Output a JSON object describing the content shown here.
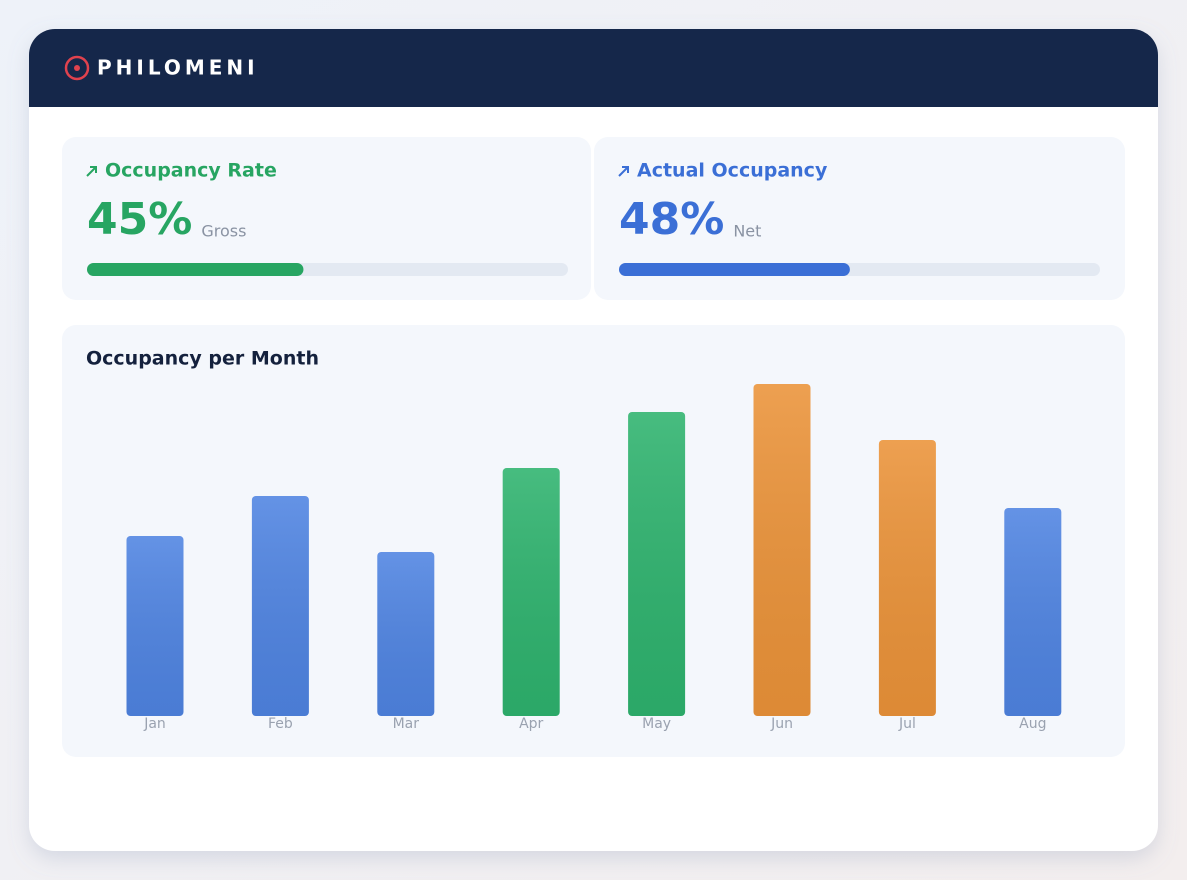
{
  "header": {
    "brand": "PHILOMENI"
  },
  "kpis": [
    {
      "title": "Occupancy Rate",
      "value": 45,
      "value_label": "45%",
      "note": "Gross",
      "color": "#27a562"
    },
    {
      "title": "Actual Occupancy",
      "value": 48,
      "value_label": "48%",
      "note": "Net",
      "color": "#3b6fd6"
    }
  ],
  "chart_data": {
    "type": "bar",
    "title": "Occupancy per Month",
    "categories": [
      "Jan",
      "Feb",
      "Mar",
      "Apr",
      "May",
      "Jun",
      "Jul",
      "Aug"
    ],
    "values": [
      45,
      55,
      41,
      62,
      76,
      83,
      69,
      52
    ],
    "colors": [
      "#4f84e2",
      "#4f84e2",
      "#4f84e2",
      "#2eb36e",
      "#2eb36e",
      "#eb9339",
      "#eb9339",
      "#4f84e2"
    ]
  }
}
